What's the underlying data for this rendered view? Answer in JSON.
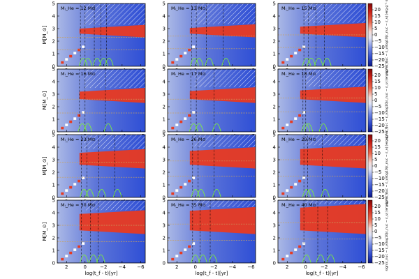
{
  "chart_data": {
    "type": "heatmap",
    "figure": "Kippenhahn diagrams of helium-star models",
    "xlabel": "log(t_f - t)[yr]",
    "ylabel": "M[M_⊙]",
    "xlim": [
      3,
      -6.5
    ],
    "ylim": [
      0,
      5
    ],
    "xticks": [
      2,
      0,
      -2,
      -4,
      -6
    ],
    "yticks": [
      0,
      1,
      2,
      3,
      4,
      5
    ],
    "colorbar": {
      "label": "sign(ε_nuc − ε_ν)log10|ε_nuc − ε_ν| [erg g⁻¹ s⁻¹]",
      "range": [
        -25,
        25
      ],
      "ticks": [
        20,
        15,
        10,
        5,
        0,
        -5,
        -10,
        -15,
        -20,
        -25
      ],
      "colors": [
        "#0a1a8c",
        "#2f4fd6",
        "#7f95e8",
        "#e8ecf8",
        "#f0c4b8",
        "#e0402e",
        "#8b0a0a"
      ]
    },
    "panels": [
      {
        "mass_label": "Mᵢ_He = 12 M⊙",
        "mass": 12,
        "convective_zone_boundaries": [
          0.5,
          0.0,
          -1.0,
          -1.7,
          -2.3
        ],
        "dashed_levels": [
          1.3,
          2.3
        ]
      },
      {
        "mass_label": "Mᵢ_He = 13 M⊙",
        "mass": 13,
        "convective_zone_boundaries": [
          0.4,
          -0.1,
          -1.2,
          -3.0
        ],
        "dashed_levels": [
          1.4,
          2.4
        ]
      },
      {
        "mass_label": "Mᵢ_He = 15 M⊙",
        "mass": 15,
        "convective_zone_boundaries": [
          0.2,
          -0.3,
          -1.1,
          -2.0
        ],
        "dashed_levels": [
          1.5,
          2.5
        ]
      },
      {
        "mass_label": "Mᵢ_He = 16 M⊙",
        "mass": 16,
        "convective_zone_boundaries": [
          0.6,
          0.0,
          -2.2
        ],
        "dashed_levels": [
          1.5,
          2.6
        ]
      },
      {
        "mass_label": "Mᵢ_He = 17 M⊙",
        "mass": 17,
        "convective_zone_boundaries": [
          0.5,
          -0.1,
          -2.0
        ],
        "dashed_levels": [
          1.5,
          2.6
        ]
      },
      {
        "mass_label": "Mᵢ_He = 18 M⊙",
        "mass": 18,
        "convective_zone_boundaries": [
          0.3,
          0.0,
          -1.6
        ],
        "dashed_levels": [
          1.6,
          2.7
        ]
      },
      {
        "mass_label": "Mᵢ_He = 23 M⊙",
        "mass": 23,
        "convective_zone_boundaries": [
          0.4,
          -0.2,
          -1.5,
          -3.2
        ],
        "dashed_levels": [
          1.6,
          2.8
        ]
      },
      {
        "mass_label": "Mᵢ_He = 26 M⊙",
        "mass": 26,
        "convective_zone_boundaries": [
          0.3,
          -0.3,
          -2.0
        ],
        "dashed_levels": [
          1.7,
          2.9
        ]
      },
      {
        "mass_label": "Mᵢ_He = 29 M⊙",
        "mass": 29,
        "convective_zone_boundaries": [
          0.2,
          -0.2,
          -1.8
        ],
        "dashed_levels": [
          1.7,
          3.0
        ]
      },
      {
        "mass_label": "Mᵢ_He = 30 M⊙",
        "mass": 30,
        "convective_zone_boundaries": [
          0.4,
          -0.6,
          -1.4
        ],
        "dashed_levels": [
          1.7,
          3.0
        ]
      },
      {
        "mass_label": "Mᵢ_He = 35 M⊙",
        "mass": 35,
        "convective_zone_boundaries": [
          0.3,
          -0.5,
          -1.6
        ],
        "dashed_levels": [
          1.8,
          3.1
        ]
      },
      {
        "mass_label": "Mᵢ_He = 40 M⊙",
        "mass": 40,
        "convective_zone_boundaries": [
          0.2,
          -1.3,
          -2.4
        ],
        "dashed_levels": [
          1.9,
          3.2
        ]
      }
    ]
  }
}
